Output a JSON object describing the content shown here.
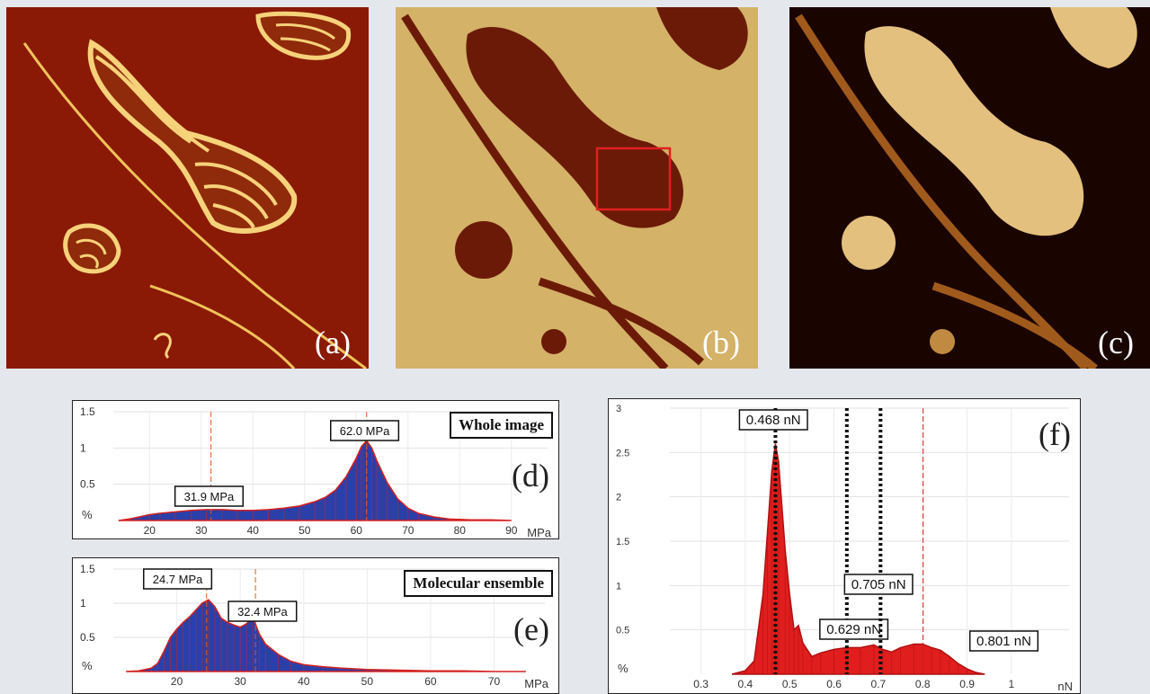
{
  "panels": {
    "a": "(a)",
    "b": "(b)",
    "c": "(c)",
    "d": "(d)",
    "e": "(e)",
    "f": "(f)"
  },
  "chart_data": [
    {
      "id": "d",
      "type": "area",
      "title": "Whole image",
      "xlabel": "MPa",
      "ylabel": "%",
      "xlim": [
        13,
        97
      ],
      "ylim": [
        0,
        1.5
      ],
      "xticks": [
        20,
        30,
        40,
        50,
        60,
        70,
        80,
        90
      ],
      "yticks": [
        0.5,
        1,
        1.5
      ],
      "fill_color": "#2b3fa8",
      "edge_color": "#d62020",
      "x": [
        14,
        16,
        18,
        20,
        22,
        25,
        28,
        31,
        34,
        37,
        40,
        43,
        46,
        49,
        52,
        54,
        56,
        58,
        60,
        61,
        62,
        63,
        64,
        66,
        68,
        70,
        72,
        75,
        78,
        82,
        86,
        90
      ],
      "values": [
        0.0,
        0.02,
        0.05,
        0.08,
        0.1,
        0.12,
        0.14,
        0.15,
        0.15,
        0.14,
        0.14,
        0.15,
        0.17,
        0.2,
        0.26,
        0.32,
        0.42,
        0.6,
        0.86,
        1.02,
        1.1,
        1.0,
        0.82,
        0.52,
        0.3,
        0.17,
        0.1,
        0.05,
        0.02,
        0.01,
        0.01,
        0.0
      ],
      "annotations": [
        {
          "label": "31.9 MPa",
          "x": 31.9
        },
        {
          "label": "62.0 MPa",
          "x": 62.0
        }
      ]
    },
    {
      "id": "e",
      "type": "area",
      "title": "Molecular ensemble",
      "xlabel": "MPa",
      "ylabel": "%",
      "xlim": [
        10,
        78
      ],
      "ylim": [
        0,
        1.5
      ],
      "xticks": [
        20,
        30,
        40,
        50,
        60,
        70
      ],
      "yticks": [
        0.5,
        1,
        1.5
      ],
      "fill_color": "#2b3fa8",
      "edge_color": "#d62020",
      "x": [
        12,
        14,
        16,
        17,
        18,
        19,
        20,
        21,
        22,
        23,
        24,
        25,
        26,
        27,
        28,
        29,
        30,
        31,
        32,
        33,
        34,
        36,
        38,
        40,
        43,
        46,
        50,
        55,
        60,
        65,
        70,
        75
      ],
      "values": [
        0.0,
        0.01,
        0.05,
        0.12,
        0.3,
        0.5,
        0.62,
        0.72,
        0.8,
        0.9,
        1.0,
        1.05,
        0.95,
        0.78,
        0.72,
        0.68,
        0.65,
        0.7,
        0.8,
        0.55,
        0.4,
        0.25,
        0.15,
        0.1,
        0.07,
        0.05,
        0.03,
        0.02,
        0.01,
        0.01,
        0.0,
        0.0
      ],
      "annotations": [
        {
          "label": "24.7 MPa",
          "x": 24.7
        },
        {
          "label": "32.4 MPa",
          "x": 32.4
        }
      ]
    },
    {
      "id": "f",
      "type": "area",
      "title": "",
      "xlabel": "nN",
      "ylabel": "%",
      "xlim": [
        0.23,
        1.13
      ],
      "ylim": [
        0,
        3
      ],
      "xticks": [
        0.3,
        0.4,
        0.5,
        0.6,
        0.7,
        0.8,
        0.9,
        1
      ],
      "yticks": [
        0.5,
        1,
        1.5,
        2,
        2.5,
        3
      ],
      "fill_color": "#e01e1e",
      "edge_color": "#b01010",
      "x": [
        0.37,
        0.4,
        0.42,
        0.44,
        0.45,
        0.46,
        0.468,
        0.475,
        0.49,
        0.5,
        0.51,
        0.52,
        0.53,
        0.55,
        0.57,
        0.6,
        0.63,
        0.66,
        0.69,
        0.71,
        0.73,
        0.75,
        0.78,
        0.8,
        0.82,
        0.84,
        0.86,
        0.88,
        0.9,
        0.92,
        0.94
      ],
      "values": [
        0.0,
        0.04,
        0.15,
        0.9,
        1.6,
        2.3,
        2.6,
        2.4,
        1.4,
        0.9,
        0.5,
        0.55,
        0.35,
        0.2,
        0.24,
        0.28,
        0.3,
        0.3,
        0.33,
        0.28,
        0.25,
        0.3,
        0.34,
        0.34,
        0.3,
        0.27,
        0.2,
        0.12,
        0.06,
        0.02,
        0.0
      ],
      "annotations": [
        {
          "label": "0.468 nN",
          "x": 0.468
        },
        {
          "label": "0.629 nN",
          "x": 0.629
        },
        {
          "label": "0.705 nN",
          "x": 0.705
        },
        {
          "label": "0.801 nN",
          "x": 0.801
        }
      ]
    }
  ]
}
